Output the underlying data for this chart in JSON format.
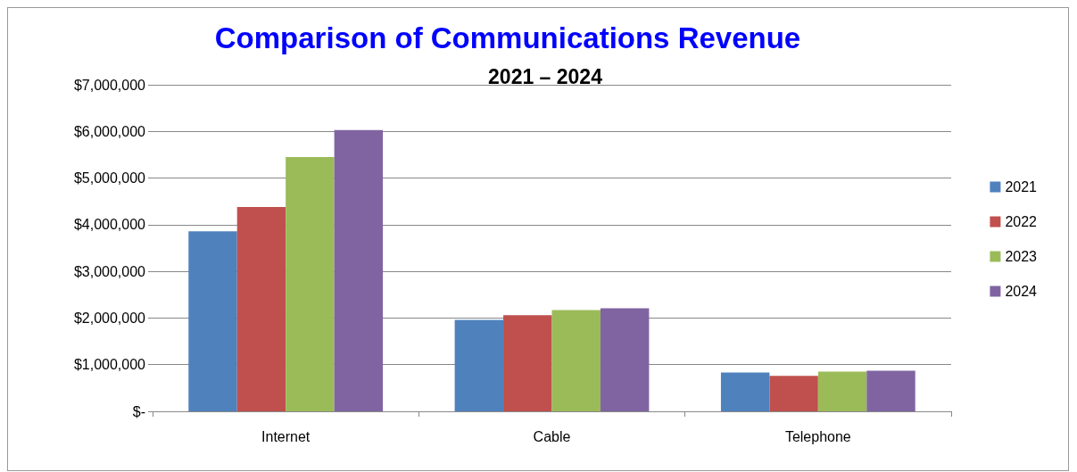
{
  "chart_data": {
    "type": "bar",
    "title": "Comparison of Communications Revenue",
    "subtitle": "2021 – 2024",
    "categories": [
      "Internet",
      "Cable",
      "Telephone"
    ],
    "series": [
      {
        "name": "2021",
        "color": "#4f81bd",
        "values": [
          3860000,
          1960000,
          830000
        ]
      },
      {
        "name": "2022",
        "color": "#c0504d",
        "values": [
          4380000,
          2060000,
          760000
        ]
      },
      {
        "name": "2023",
        "color": "#9bbb59",
        "values": [
          5450000,
          2170000,
          850000
        ]
      },
      {
        "name": "2024",
        "color": "#8064a2",
        "values": [
          6030000,
          2210000,
          870000
        ]
      }
    ],
    "ylim": [
      0,
      7000000
    ],
    "yticks": [
      {
        "value": 0,
        "label": "$-"
      },
      {
        "value": 1000000,
        "label": "$1,000,000"
      },
      {
        "value": 2000000,
        "label": "$2,000,000"
      },
      {
        "value": 3000000,
        "label": "$3,000,000"
      },
      {
        "value": 4000000,
        "label": "$4,000,000"
      },
      {
        "value": 5000000,
        "label": "$5,000,000"
      },
      {
        "value": 6000000,
        "label": "$6,000,000"
      },
      {
        "value": 7000000,
        "label": "$7,000,000"
      }
    ],
    "grid": "y",
    "legend": "right"
  }
}
